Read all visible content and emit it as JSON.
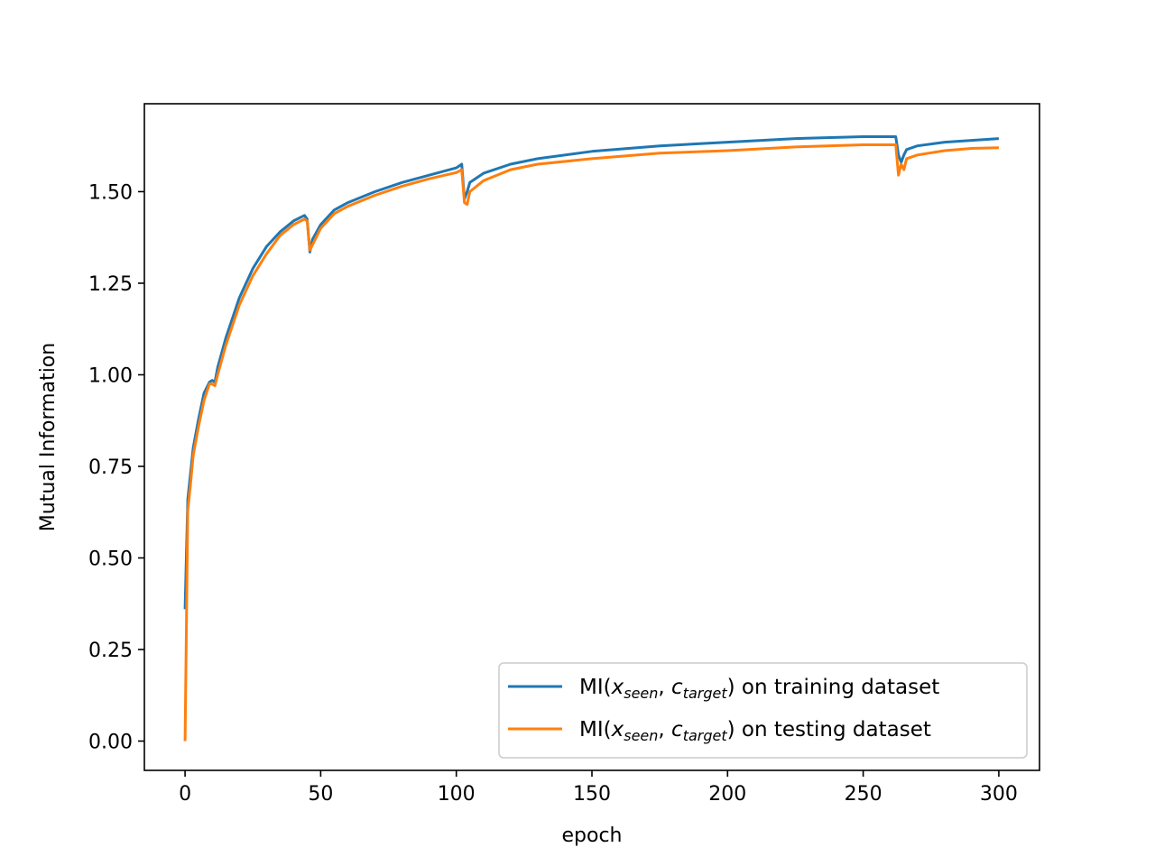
{
  "chart_data": {
    "type": "line",
    "title": "",
    "xlabel": "epoch",
    "ylabel": "Mutual Information",
    "xlim": [
      -15,
      315
    ],
    "ylim": [
      -0.08,
      1.74
    ],
    "xticks": [
      0,
      50,
      100,
      150,
      200,
      250,
      300
    ],
    "xtick_labels": [
      "0",
      "50",
      "100",
      "150",
      "200",
      "250",
      "300"
    ],
    "yticks": [
      0.0,
      0.25,
      0.5,
      0.75,
      1.0,
      1.25,
      1.5
    ],
    "ytick_labels": [
      "0.00",
      "0.25",
      "0.50",
      "0.75",
      "1.00",
      "1.25",
      "1.50"
    ],
    "grid": false,
    "legend_position": "lower-right",
    "series": [
      {
        "name": "MI(x_seen, c_target) on training dataset",
        "legend_prefix": "MI(",
        "legend_var1": "x",
        "legend_sub1": "seen",
        "legend_sep": ", ",
        "legend_var2": "c",
        "legend_sub2": "target",
        "legend_suffix": ") on training dataset",
        "color": "#1f77b4",
        "x": [
          0,
          1,
          2,
          3,
          5,
          7,
          9,
          10,
          11,
          12,
          15,
          20,
          25,
          30,
          35,
          40,
          44,
          45,
          46,
          47,
          50,
          55,
          60,
          70,
          80,
          90,
          100,
          102,
          103,
          104,
          105,
          110,
          120,
          130,
          150,
          175,
          200,
          225,
          250,
          262,
          263,
          264,
          265,
          266,
          270,
          280,
          290,
          300
        ],
        "y": [
          0.36,
          0.66,
          0.73,
          0.8,
          0.88,
          0.95,
          0.98,
          0.985,
          0.98,
          1.02,
          1.1,
          1.21,
          1.29,
          1.35,
          1.39,
          1.42,
          1.435,
          1.425,
          1.335,
          1.37,
          1.41,
          1.45,
          1.47,
          1.5,
          1.525,
          1.545,
          1.565,
          1.575,
          1.48,
          1.5,
          1.525,
          1.55,
          1.575,
          1.59,
          1.61,
          1.625,
          1.635,
          1.645,
          1.65,
          1.65,
          1.6,
          1.58,
          1.6,
          1.615,
          1.625,
          1.635,
          1.64,
          1.645
        ]
      },
      {
        "name": "MI(x_seen, c_target) on testing dataset",
        "legend_prefix": "MI(",
        "legend_var1": "x",
        "legend_sub1": "seen",
        "legend_sep": ", ",
        "legend_var2": "c",
        "legend_sub2": "target",
        "legend_suffix": ") on testing dataset",
        "color": "#ff7f0e",
        "x": [
          0,
          1,
          2,
          3,
          5,
          7,
          9,
          10,
          11,
          12,
          15,
          20,
          25,
          30,
          35,
          40,
          44,
          45,
          46,
          47,
          50,
          55,
          60,
          70,
          80,
          90,
          100,
          102,
          103,
          104,
          105,
          110,
          120,
          130,
          150,
          175,
          200,
          225,
          250,
          262,
          263,
          264,
          265,
          266,
          270,
          280,
          290,
          300
        ],
        "y": [
          0.0,
          0.63,
          0.7,
          0.78,
          0.86,
          0.93,
          0.975,
          0.975,
          0.97,
          1.0,
          1.08,
          1.19,
          1.27,
          1.33,
          1.38,
          1.41,
          1.425,
          1.42,
          1.34,
          1.355,
          1.4,
          1.44,
          1.46,
          1.49,
          1.515,
          1.535,
          1.552,
          1.56,
          1.47,
          1.465,
          1.5,
          1.53,
          1.56,
          1.575,
          1.59,
          1.605,
          1.612,
          1.622,
          1.628,
          1.628,
          1.545,
          1.575,
          1.56,
          1.59,
          1.6,
          1.612,
          1.618,
          1.62
        ]
      }
    ]
  }
}
